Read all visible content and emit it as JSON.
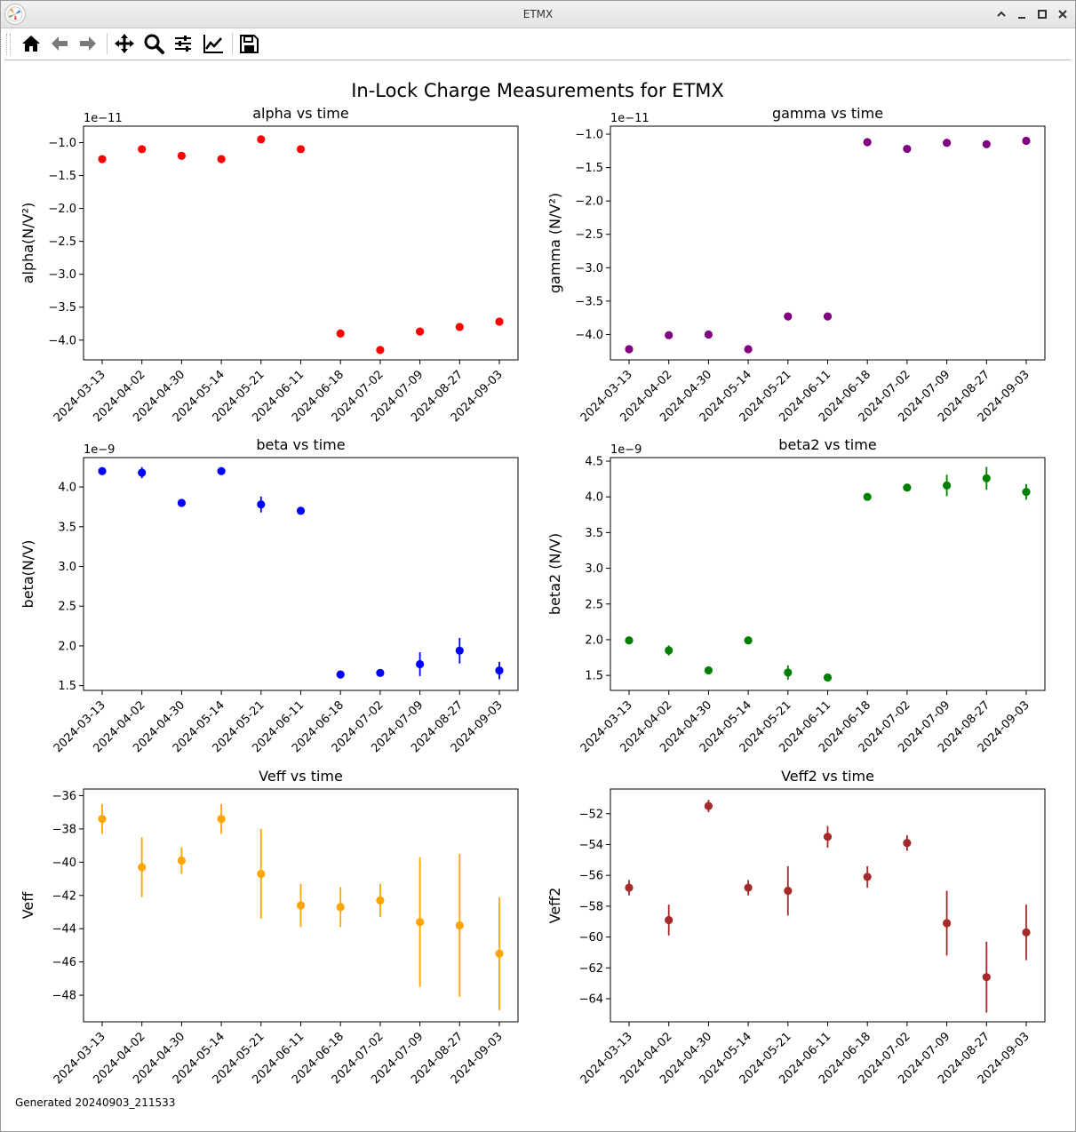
{
  "window": {
    "title": "ETMX"
  },
  "toolbar": {
    "buttons": [
      {
        "name": "home-button",
        "icon": "home-icon"
      },
      {
        "name": "back-button",
        "icon": "arrow-left-icon"
      },
      {
        "name": "forward-button",
        "icon": "arrow-right-icon"
      },
      {
        "name": "pan-button",
        "icon": "move-icon"
      },
      {
        "name": "zoom-button",
        "icon": "magnifier-icon"
      },
      {
        "name": "subplots-button",
        "icon": "sliders-icon"
      },
      {
        "name": "edit-axes-button",
        "icon": "line-chart-icon"
      },
      {
        "name": "save-button",
        "icon": "floppy-disk-icon"
      }
    ]
  },
  "figure": {
    "suptitle": "In-Lock Charge Measurements for ETMX",
    "footer": "Generated 20240903_211533"
  },
  "chart_data": [
    {
      "type": "scatter",
      "title": "alpha vs time",
      "ylabel": "alpha(N/V²)",
      "offset_text": "1e−11",
      "color": "#ff0000",
      "categories": [
        "2024-03-13",
        "2024-04-02",
        "2024-04-30",
        "2024-05-14",
        "2024-05-21",
        "2024-06-11",
        "2024-06-18",
        "2024-07-02",
        "2024-07-09",
        "2024-08-27",
        "2024-09-03"
      ],
      "values": [
        -1.25,
        -1.1,
        -1.2,
        -1.25,
        -0.95,
        -1.1,
        -3.9,
        -4.15,
        -3.87,
        -3.8,
        -3.72
      ],
      "errors": [
        0.03,
        0.03,
        0.03,
        0.03,
        0.03,
        0.03,
        0.03,
        0.03,
        0.03,
        0.03,
        0.03
      ],
      "ylim": [
        -4.3,
        -0.75
      ],
      "yticks": [
        -4.0,
        -3.5,
        -3.0,
        -2.5,
        -2.0,
        -1.5,
        -1.0
      ],
      "ytick_labels": [
        "−4.0",
        "−3.5",
        "−3.0",
        "−2.5",
        "−2.0",
        "−1.5",
        "−1.0"
      ]
    },
    {
      "type": "scatter",
      "title": "gamma vs time",
      "ylabel": "gamma (N/V²)",
      "offset_text": "1e−11",
      "color": "#800080",
      "categories": [
        "2024-03-13",
        "2024-04-02",
        "2024-04-30",
        "2024-05-14",
        "2024-05-21",
        "2024-06-11",
        "2024-06-18",
        "2024-07-02",
        "2024-07-09",
        "2024-08-27",
        "2024-09-03"
      ],
      "values": [
        -4.22,
        -4.01,
        -4.0,
        -4.22,
        -3.73,
        -3.73,
        -1.12,
        -1.22,
        -1.13,
        -1.15,
        -1.1
      ],
      "errors": [
        0.03,
        0.03,
        0.03,
        0.03,
        0.03,
        0.03,
        0.03,
        0.03,
        0.03,
        0.03,
        0.03
      ],
      "ylim": [
        -4.38,
        -0.88
      ],
      "yticks": [
        -4.0,
        -3.5,
        -3.0,
        -2.5,
        -2.0,
        -1.5,
        -1.0
      ],
      "ytick_labels": [
        "−4.0",
        "−3.5",
        "−3.0",
        "−2.5",
        "−2.0",
        "−1.5",
        "−1.0"
      ]
    },
    {
      "type": "scatter",
      "title": "beta vs time",
      "ylabel": "beta(N/V)",
      "offset_text": "1e−9",
      "color": "#0000ff",
      "categories": [
        "2024-03-13",
        "2024-04-02",
        "2024-04-30",
        "2024-05-14",
        "2024-05-21",
        "2024-06-11",
        "2024-06-18",
        "2024-07-02",
        "2024-07-09",
        "2024-08-27",
        "2024-09-03"
      ],
      "values": [
        4.2,
        4.18,
        3.8,
        4.2,
        3.78,
        3.7,
        1.64,
        1.66,
        1.77,
        1.94,
        1.69
      ],
      "errors": [
        0.03,
        0.07,
        0.03,
        0.03,
        0.1,
        0.03,
        0.03,
        0.03,
        0.15,
        0.16,
        0.11
      ],
      "ylim": [
        1.44,
        4.37
      ],
      "yticks": [
        1.5,
        2.0,
        2.5,
        3.0,
        3.5,
        4.0
      ],
      "ytick_labels": [
        "1.5",
        "2.0",
        "2.5",
        "3.0",
        "3.5",
        "4.0"
      ]
    },
    {
      "type": "scatter",
      "title": "beta2 vs time",
      "ylabel": "beta2 (N/V)",
      "offset_text": "1e−9",
      "color": "#008000",
      "categories": [
        "2024-03-13",
        "2024-04-02",
        "2024-04-30",
        "2024-05-14",
        "2024-05-21",
        "2024-06-11",
        "2024-06-18",
        "2024-07-02",
        "2024-07-09",
        "2024-08-27",
        "2024-09-03"
      ],
      "values": [
        1.99,
        1.85,
        1.57,
        1.99,
        1.54,
        1.47,
        4.0,
        4.13,
        4.16,
        4.26,
        4.07
      ],
      "errors": [
        0.03,
        0.07,
        0.03,
        0.03,
        0.1,
        0.03,
        0.03,
        0.03,
        0.15,
        0.16,
        0.11
      ],
      "ylim": [
        1.29,
        4.55
      ],
      "yticks": [
        1.5,
        2.0,
        2.5,
        3.0,
        3.5,
        4.0,
        4.5
      ],
      "ytick_labels": [
        "1.5",
        "2.0",
        "2.5",
        "3.0",
        "3.5",
        "4.0",
        "4.5"
      ]
    },
    {
      "type": "scatter",
      "title": "Veff vs time",
      "ylabel": "Veff",
      "offset_text": "",
      "color": "#ffa500",
      "categories": [
        "2024-03-13",
        "2024-04-02",
        "2024-04-30",
        "2024-05-14",
        "2024-05-21",
        "2024-06-11",
        "2024-06-18",
        "2024-07-02",
        "2024-07-09",
        "2024-08-27",
        "2024-09-03"
      ],
      "values": [
        -37.4,
        -40.3,
        -39.9,
        -37.4,
        -40.7,
        -42.6,
        -42.7,
        -42.3,
        -43.6,
        -43.8,
        -45.5
      ],
      "errors": [
        0.9,
        1.8,
        0.8,
        0.9,
        2.7,
        1.3,
        1.2,
        1.0,
        3.9,
        4.3,
        3.4
      ],
      "ylim": [
        -49.6,
        -35.6
      ],
      "yticks": [
        -48,
        -46,
        -44,
        -42,
        -40,
        -38,
        -36
      ],
      "ytick_labels": [
        "−48",
        "−46",
        "−44",
        "−42",
        "−40",
        "−38",
        "−36"
      ]
    },
    {
      "type": "scatter",
      "title": "Veff2 vs time",
      "ylabel": "Veff2",
      "offset_text": "",
      "color": "#a52a2a",
      "categories": [
        "2024-03-13",
        "2024-04-02",
        "2024-04-30",
        "2024-05-14",
        "2024-05-21",
        "2024-06-11",
        "2024-06-18",
        "2024-07-02",
        "2024-07-09",
        "2024-08-27",
        "2024-09-03"
      ],
      "values": [
        -56.8,
        -58.9,
        -51.5,
        -56.8,
        -57.0,
        -53.5,
        -56.1,
        -53.9,
        -59.1,
        -62.6,
        -59.7
      ],
      "errors": [
        0.5,
        1.0,
        0.4,
        0.5,
        1.6,
        0.7,
        0.7,
        0.5,
        2.1,
        2.3,
        1.8
      ],
      "ylim": [
        -65.5,
        -50.4
      ],
      "yticks": [
        -64,
        -62,
        -60,
        -58,
        -56,
        -54,
        -52
      ],
      "ytick_labels": [
        "−64",
        "−62",
        "−60",
        "−58",
        "−56",
        "−54",
        "−52"
      ]
    }
  ]
}
